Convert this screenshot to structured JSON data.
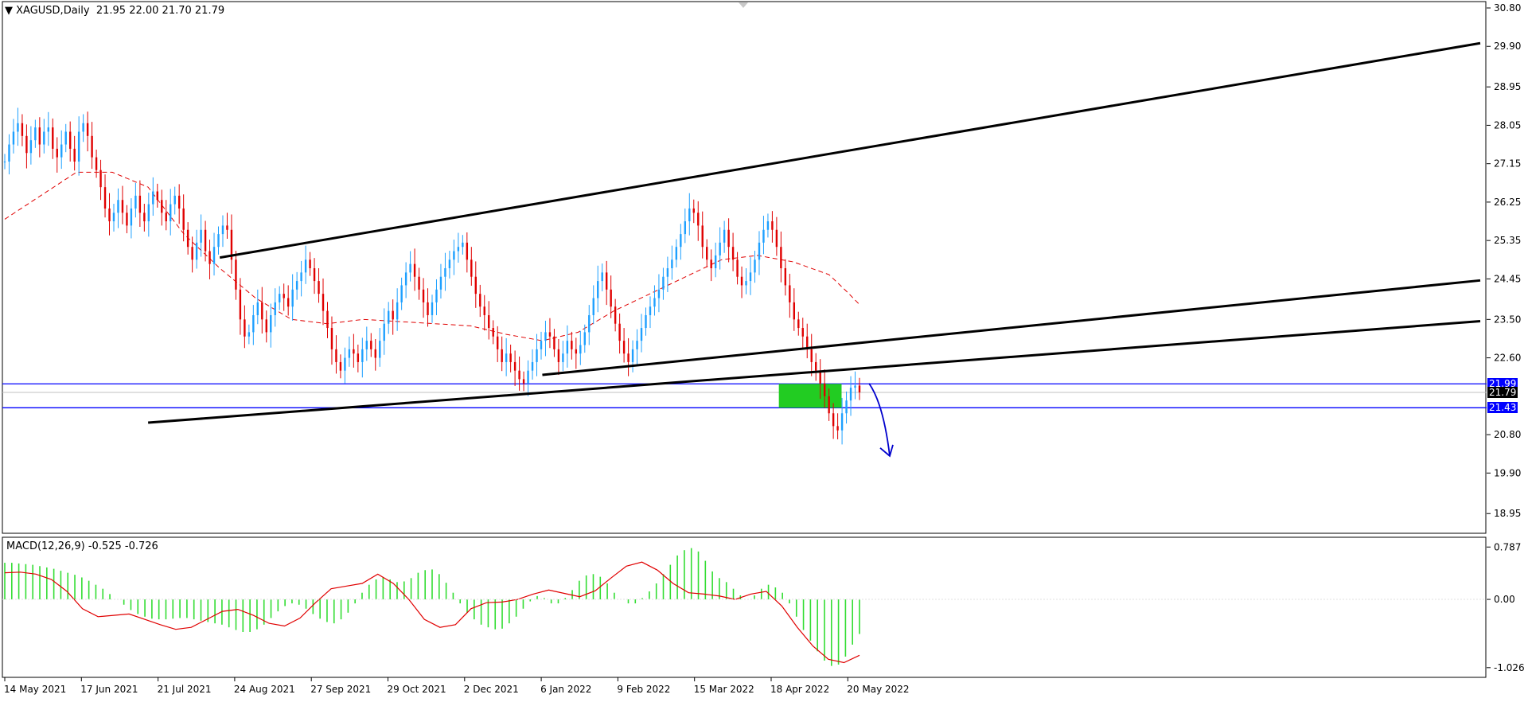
{
  "chart_data": [
    {
      "type": "candlestick",
      "title": "XAGUSD,Daily",
      "ohlc_readout": "21.95 22.00 21.70 21.79",
      "x_labels": [
        "14 May 2021",
        "17 Jun 2021",
        "21 Jul 2021",
        "24 Aug 2021",
        "27 Sep 2021",
        "29 Oct 2021",
        "2 Dec 2021",
        "6 Jan 2022",
        "9 Feb 2022",
        "15 Mar 2022",
        "18 Apr 2022",
        "20 May 2022"
      ],
      "y_ticks": [
        "30.80",
        "29.90",
        "28.95",
        "28.05",
        "27.15",
        "26.25",
        "25.35",
        "24.45",
        "23.50",
        "22.60",
        "20.80",
        "19.90",
        "18.95"
      ],
      "ylim": [
        18.6,
        30.8
      ],
      "price_levels": [
        {
          "label": "21.99",
          "value": 21.99,
          "color": "#0000ff"
        },
        {
          "label": "21.79",
          "value": 21.79,
          "color": "#000000"
        },
        {
          "label": "21.43",
          "value": 21.43,
          "color": "#0000ff"
        }
      ],
      "closes": [
        27.2,
        27.6,
        27.9,
        28.1,
        27.8,
        27.4,
        27.7,
        28.0,
        27.6,
        27.9,
        28.0,
        27.5,
        27.3,
        27.6,
        27.9,
        27.5,
        27.2,
        27.9,
        28.1,
        27.8,
        27.3,
        27.0,
        26.6,
        26.1,
        25.8,
        26.0,
        26.3,
        26.0,
        25.7,
        26.1,
        26.4,
        26.0,
        25.8,
        26.2,
        26.5,
        26.3,
        26.0,
        25.8,
        26.2,
        26.4,
        26.1,
        25.6,
        25.2,
        24.9,
        25.3,
        25.6,
        25.1,
        24.8,
        25.2,
        25.5,
        25.7,
        25.6,
        24.9,
        24.2,
        23.5,
        23.1,
        23.2,
        23.6,
        23.9,
        23.5,
        23.2,
        23.6,
        23.9,
        24.1,
        24.0,
        23.8,
        24.2,
        24.4,
        24.6,
        24.9,
        24.7,
        24.4,
        24.1,
        23.7,
        23.3,
        22.8,
        22.5,
        22.3,
        22.6,
        22.8,
        22.7,
        22.5,
        22.8,
        23.0,
        22.8,
        22.6,
        23.0,
        23.4,
        23.7,
        23.5,
        23.9,
        24.3,
        24.6,
        24.8,
        24.5,
        24.2,
        23.9,
        23.6,
        23.9,
        24.2,
        24.5,
        24.7,
        24.9,
        25.1,
        25.2,
        25.3,
        24.9,
        24.5,
        24.1,
        23.8,
        23.6,
        23.3,
        23.1,
        22.8,
        22.5,
        22.7,
        22.5,
        22.3,
        22.1,
        22.0,
        22.3,
        22.5,
        22.8,
        23.0,
        23.2,
        23.1,
        22.8,
        22.5,
        22.7,
        23.0,
        22.8,
        22.7,
        22.9,
        23.2,
        23.6,
        24.0,
        24.4,
        24.6,
        24.2,
        23.8,
        23.4,
        23.0,
        22.7,
        22.5,
        22.8,
        23.0,
        23.3,
        23.6,
        23.8,
        24.0,
        24.2,
        24.5,
        24.7,
        24.9,
        25.2,
        25.5,
        25.8,
        26.1,
        26.0,
        25.7,
        25.2,
        24.9,
        24.7,
        25.0,
        25.3,
        25.6,
        25.2,
        24.9,
        24.5,
        24.3,
        24.4,
        24.6,
        24.9,
        25.3,
        25.6,
        25.8,
        25.6,
        25.2,
        24.7,
        24.3,
        23.9,
        23.5,
        23.3,
        23.1,
        22.8,
        22.5,
        22.3,
        22.0,
        21.7,
        21.3,
        21.0,
        20.9,
        21.3,
        21.6,
        21.9,
        21.95,
        21.79
      ],
      "ma_slow_points": [
        [
          0,
          25.85
        ],
        [
          20,
          26.4
        ],
        [
          40,
          26.95
        ],
        [
          60,
          26.95
        ],
        [
          80,
          26.6
        ],
        [
          100,
          25.5
        ],
        [
          120,
          24.7
        ],
        [
          140,
          24.0
        ],
        [
          160,
          23.5
        ],
        [
          180,
          23.4
        ],
        [
          200,
          23.5
        ],
        [
          220,
          23.45
        ],
        [
          240,
          23.4
        ],
        [
          260,
          23.35
        ],
        [
          280,
          23.15
        ],
        [
          300,
          23.0
        ],
        [
          320,
          23.2
        ],
        [
          340,
          23.7
        ],
        [
          360,
          24.1
        ],
        [
          380,
          24.5
        ],
        [
          400,
          24.9
        ],
        [
          420,
          25.0
        ],
        [
          440,
          24.85
        ],
        [
          460,
          24.55
        ],
        [
          470,
          24.15
        ],
        [
          477,
          23.85
        ]
      ],
      "ma_fast_points": [
        [
          0,
          25.9
        ],
        [
          20,
          26.3
        ],
        [
          40,
          26.9
        ],
        [
          60,
          26.2
        ],
        [
          70,
          25.5
        ],
        [
          90,
          25.7
        ],
        [
          110,
          25.8
        ],
        [
          130,
          25.2
        ],
        [
          150,
          24.5
        ],
        [
          160,
          24.3
        ],
        [
          170,
          23.9
        ],
        [
          185,
          24.4
        ],
        [
          200,
          25.0
        ],
        [
          225,
          24.8
        ],
        [
          250,
          24.2
        ],
        [
          280,
          24.4
        ],
        [
          300,
          24.3
        ],
        [
          330,
          25.3
        ],
        [
          345,
          25.6
        ],
        [
          365,
          24.6
        ],
        [
          390,
          25.1
        ],
        [
          395,
          23.2
        ],
        [
          410,
          22.7
        ],
        [
          425,
          22.3
        ],
        [
          440,
          22.1
        ],
        [
          455,
          21.3
        ],
        [
          477,
          21.8
        ]
      ],
      "support_line": {
        "x": [
          80,
          477
        ],
        "y": [
          21.07,
          22.4
        ]
      },
      "resistance_line": {
        "x": [
          120,
          477
        ],
        "y": [
          24.95,
          27.5
        ]
      },
      "channel_mid_line": {
        "x": [
          300,
          477
        ],
        "y": [
          22.3,
          23.75
        ]
      },
      "highlight_zone": {
        "x": [
          432,
          467
        ],
        "y": [
          21.43,
          21.99
        ],
        "color": "#22cc22"
      },
      "forecast_arrow": {
        "x": [
          460,
          475
        ],
        "y": [
          21.9,
          20.3
        ],
        "color": "#0000cc"
      }
    },
    {
      "type": "macd",
      "title": "MACD(12,26,9) -0.525 -0.726",
      "y_ticks": [
        "0.787",
        "0.00",
        "-1.026"
      ],
      "ylim": [
        -1.1,
        0.85
      ],
      "histogram": [
        0.55,
        0.55,
        0.54,
        0.53,
        0.52,
        0.5,
        0.48,
        0.46,
        0.43,
        0.4,
        0.37,
        0.33,
        0.28,
        0.22,
        0.16,
        0.08,
        0.0,
        -0.08,
        -0.16,
        -0.22,
        -0.26,
        -0.29,
        -0.3,
        -0.3,
        -0.29,
        -0.28,
        -0.28,
        -0.3,
        -0.32,
        -0.34,
        -0.36,
        -0.38,
        -0.42,
        -0.46,
        -0.49,
        -0.49,
        -0.45,
        -0.38,
        -0.28,
        -0.18,
        -0.1,
        -0.06,
        -0.08,
        -0.14,
        -0.22,
        -0.29,
        -0.34,
        -0.36,
        -0.3,
        -0.2,
        -0.06,
        0.1,
        0.22,
        0.3,
        0.33,
        0.3,
        0.26,
        0.27,
        0.32,
        0.4,
        0.44,
        0.45,
        0.38,
        0.25,
        0.1,
        -0.06,
        -0.2,
        -0.3,
        -0.38,
        -0.42,
        -0.45,
        -0.44,
        -0.36,
        -0.26,
        -0.14,
        -0.03,
        0.05,
        0.02,
        -0.06,
        -0.06,
        0.02,
        0.14,
        0.28,
        0.36,
        0.38,
        0.34,
        0.24,
        0.1,
        0.0,
        -0.06,
        -0.06,
        0.02,
        0.12,
        0.24,
        0.38,
        0.52,
        0.66,
        0.74,
        0.77,
        0.72,
        0.58,
        0.42,
        0.32,
        0.26,
        0.16,
        0.06,
        0.0,
        0.06,
        0.16,
        0.22,
        0.18,
        0.1,
        -0.06,
        -0.26,
        -0.46,
        -0.62,
        -0.78,
        -0.92,
        -1.0,
        -0.98,
        -0.86,
        -0.68,
        -0.52
      ],
      "macd_line": [
        0.4,
        0.41,
        0.38,
        0.3,
        0.12,
        -0.14,
        -0.26,
        -0.24,
        -0.22,
        -0.3,
        -0.38,
        -0.45,
        -0.42,
        -0.3,
        -0.18,
        -0.15,
        -0.24,
        -0.36,
        -0.4,
        -0.28,
        -0.05,
        0.16,
        0.2,
        0.24,
        0.38,
        0.24,
        0.0,
        -0.3,
        -0.42,
        -0.38,
        -0.14,
        -0.05,
        -0.04,
        0.0,
        0.08,
        0.14,
        0.09,
        0.04,
        0.13,
        0.32,
        0.5,
        0.56,
        0.44,
        0.24,
        0.1,
        0.08,
        0.05,
        0.0,
        0.08,
        0.12,
        -0.1,
        -0.42,
        -0.7,
        -0.9,
        -0.95,
        -0.84
      ],
      "signal_line": [
        0.4,
        0.41,
        0.38,
        0.3,
        0.12,
        -0.14,
        -0.26,
        -0.24,
        -0.22,
        -0.3,
        -0.38,
        -0.45,
        -0.42,
        -0.3,
        -0.18,
        -0.15,
        -0.24,
        -0.36,
        -0.4,
        -0.28,
        -0.05,
        0.16,
        0.2,
        0.24,
        0.38,
        0.24,
        0.0,
        -0.3,
        -0.42,
        -0.38,
        -0.14,
        -0.05,
        -0.04,
        0.0,
        0.08,
        0.14,
        0.09,
        0.04,
        0.13,
        0.32,
        0.5,
        0.56,
        0.44,
        0.24,
        0.1,
        0.08,
        0.05,
        0.0,
        0.08,
        0.12,
        -0.1,
        -0.42,
        -0.7,
        -0.9,
        -0.95,
        -0.84
      ]
    }
  ]
}
